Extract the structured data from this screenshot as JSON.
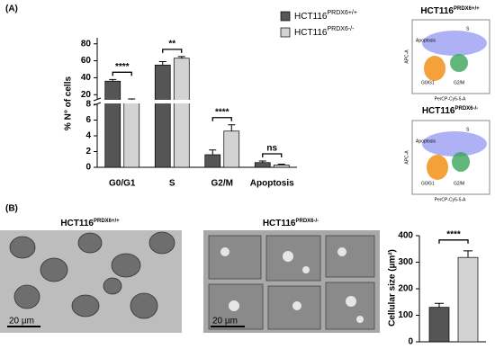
{
  "panel_labels": [
    "(A)",
    "(B)"
  ],
  "flow_plots": [
    {
      "title": "HCT116",
      "title_sup": "PRDX6+/+",
      "y_label": "APC-A",
      "x_label": "PerCP-Cy5-5-A",
      "gates": [
        "Apoptosis",
        "S",
        "G0/G1",
        "G2/M"
      ]
    },
    {
      "title": "HCT116",
      "title_sup": "PRDX6-/-",
      "y_label": "APC-A",
      "x_label": "PerCP-Cy5-5-A",
      "gates": [
        "Apoptosis",
        "S",
        "G0/G1",
        "G2/M"
      ]
    }
  ],
  "micrographs": [
    {
      "title": "HCT116",
      "title_sup": "PRDX6+/+",
      "scale_bar": "20 µm"
    },
    {
      "title": "HCT116",
      "title_sup": "PRDX6-/-",
      "scale_bar": "20 µm"
    }
  ],
  "chart_data": [
    {
      "type": "bar",
      "y_label": "% N° of cells",
      "categories": [
        "G0/G1",
        "S",
        "G2/M",
        "Apoptosis"
      ],
      "series": [
        {
          "name": "HCT116",
          "name_sup": "PRDX6+/+",
          "color": "#555555",
          "values": [
            36,
            55,
            1.6,
            0.6
          ],
          "errors": [
            2,
            4,
            0.6,
            0.2
          ]
        },
        {
          "name": "HCT116",
          "name_sup": "PRDX6-/-",
          "color": "#d3d3d3",
          "values": [
            14,
            63,
            4.6,
            0.3
          ],
          "errors": [
            1,
            2,
            0.8,
            0.1
          ]
        }
      ],
      "significance": [
        "****",
        "**",
        "****",
        "ns"
      ],
      "ylim": [
        0,
        85
      ],
      "y_break": [
        8,
        15
      ],
      "yticks": [
        0,
        2,
        4,
        6,
        8,
        20,
        40,
        60,
        80
      ]
    },
    {
      "type": "bar",
      "y_label": "Cellular size (µm²)",
      "series": [
        {
          "color": "#555555",
          "values": [
            130
          ],
          "errors": [
            15
          ]
        },
        {
          "color": "#d3d3d3",
          "values": [
            318
          ],
          "errors": [
            25
          ]
        }
      ],
      "significance": "****",
      "ylim": [
        0,
        400
      ],
      "yticks": [
        0,
        100,
        200,
        300,
        400
      ]
    }
  ]
}
